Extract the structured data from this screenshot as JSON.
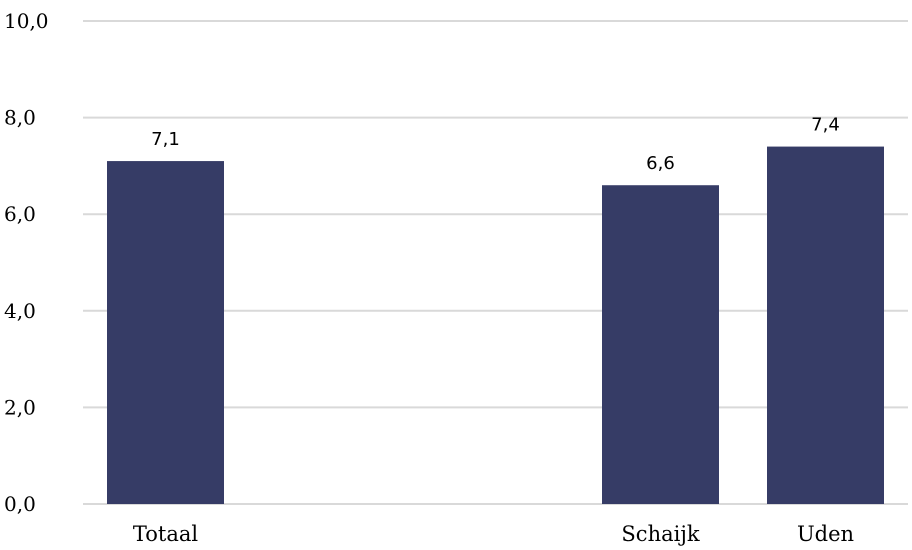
{
  "chart_data": {
    "type": "bar",
    "title": "",
    "xlabel": "",
    "ylabel": "",
    "categories": [
      "Totaal",
      "",
      "",
      "Schaijk",
      "Uden"
    ],
    "values": [
      7.1,
      null,
      null,
      6.6,
      7.4
    ],
    "data_labels": [
      "7,1",
      "",
      "",
      "6,6",
      "7,4"
    ],
    "ylim": [
      0,
      10
    ],
    "y_ticks": [
      0,
      2,
      4,
      6,
      8,
      10
    ],
    "y_tick_labels": [
      "0,0",
      "2,0",
      "4,0",
      "6,0",
      "8,0",
      "10,0"
    ],
    "grid": true,
    "legend": "none",
    "bar_color": "#363c66",
    "gridline_color": "#d9d9d9"
  }
}
